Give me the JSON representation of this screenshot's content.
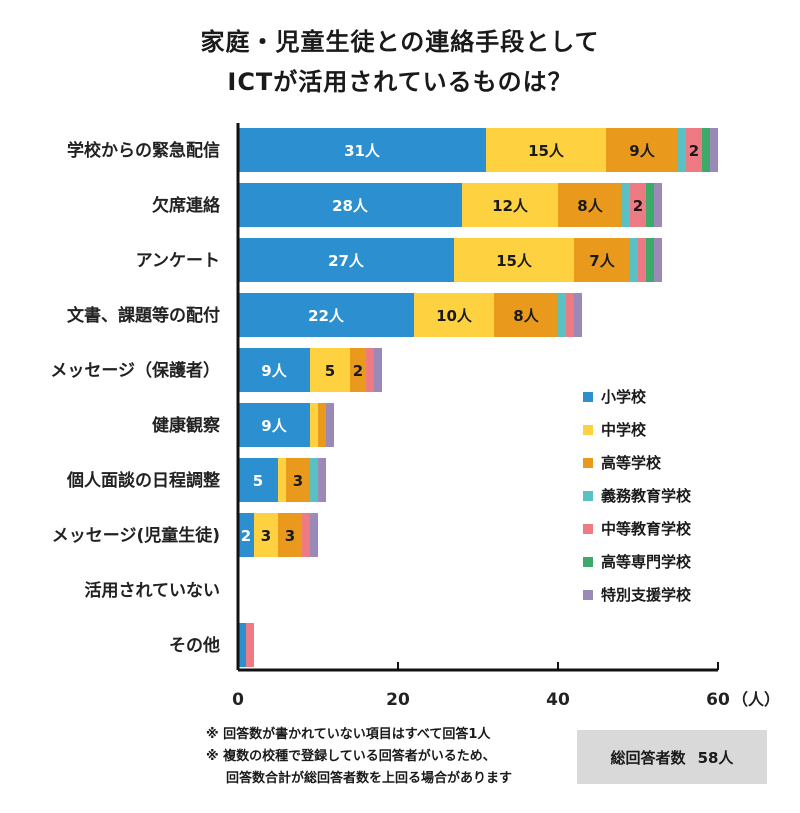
{
  "title_line1": "家庭・児童生徒との連絡手段として",
  "title_line2": "ICTが活用されているものは？",
  "total": {
    "label": "総回答者数",
    "value": "58人"
  },
  "notes": [
    "※ 回答数が書かれていない項目はすべて回答1人",
    "※ 複数の校種で登録している回答者がいるため、",
    "回答数合計が総回答者数を上回る場合があります"
  ],
  "chart_data": {
    "type": "bar",
    "orientation": "horizontal",
    "stacked": true,
    "unit_label": "（人）",
    "xlim": [
      0,
      60
    ],
    "xticks": [
      0,
      20,
      40,
      60
    ],
    "categories": [
      "学校からの緊急配信",
      "欠席連絡",
      "アンケート",
      "文書、課題等の配付",
      "メッセージ（保護者）",
      "健康観察",
      "個人面談の日程調整",
      "メッセージ(児童生徒)",
      "活用されていない",
      "その他"
    ],
    "series": [
      {
        "name": "小学校",
        "color": "#2b8fd0",
        "label_color": "#ffffff",
        "values": [
          31,
          28,
          27,
          22,
          9,
          9,
          5,
          2,
          0,
          1
        ]
      },
      {
        "name": "中学校",
        "color": "#fdd13f",
        "label_color": "#1a1a1a",
        "values": [
          15,
          12,
          15,
          10,
          5,
          1,
          1,
          3,
          0,
          0
        ]
      },
      {
        "name": "高等学校",
        "color": "#e99a1c",
        "label_color": "#1a1a1a",
        "values": [
          9,
          8,
          7,
          8,
          2,
          1,
          3,
          3,
          0,
          0
        ]
      },
      {
        "name": "義務教育学校",
        "color": "#5bc0c4",
        "label_color": "#1a1a1a",
        "values": [
          1,
          1,
          1,
          1,
          0,
          0,
          1,
          0,
          0,
          0
        ]
      },
      {
        "name": "中等教育学校",
        "color": "#ee7a84",
        "label_color": "#1a1a1a",
        "values": [
          2,
          2,
          1,
          1,
          1,
          0,
          0,
          1,
          0,
          1
        ]
      },
      {
        "name": "高等専門学校",
        "color": "#3caa68",
        "label_color": "#1a1a1a",
        "values": [
          1,
          1,
          1,
          0,
          0,
          0,
          0,
          0,
          0,
          0
        ]
      },
      {
        "name": "特別支援学校",
        "color": "#9b8ab8",
        "label_color": "#1a1a1a",
        "values": [
          1,
          1,
          1,
          1,
          1,
          1,
          1,
          1,
          0,
          0
        ]
      }
    ],
    "data_labels_min_value": 2,
    "legend_position": "right"
  }
}
